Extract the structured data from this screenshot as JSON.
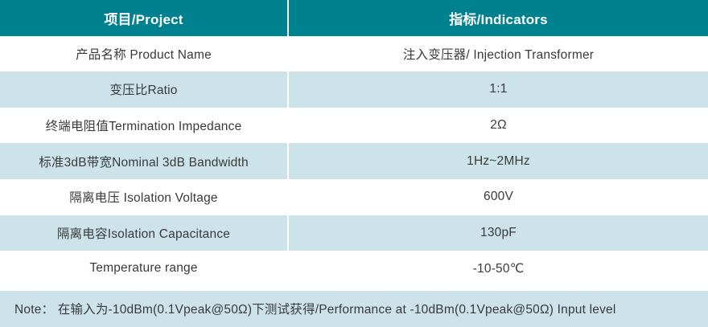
{
  "table": {
    "header": {
      "project": "项目/Project",
      "indicators": "指标/Indicators"
    },
    "rows": [
      {
        "project": "产品名称 Product Name",
        "indicator": "注入变压器/ Injection Transformer"
      },
      {
        "project": "变压比Ratio",
        "indicator": "1:1"
      },
      {
        "project": "终端电阻值Termination Impedance",
        "indicator": "2Ω"
      },
      {
        "project": "标准3dB带宽Nominal 3dB Bandwidth",
        "indicator": "1Hz~2MHz"
      },
      {
        "project": "隔离电压 Isolation Voltage",
        "indicator": "600V"
      },
      {
        "project": "隔离电容Isolation Capacitance",
        "indicator": "130pF"
      },
      {
        "project": "Temperature range",
        "indicator": "-10-50℃"
      }
    ],
    "note": "Note： 在输入为-10dBm(0.1Vpeak@50Ω)下测试获得/Performance at -10dBm(0.1Vpeak@50Ω) Input level"
  },
  "colors": {
    "header_bg": "#00818f",
    "header_text": "#ffffff",
    "row_alt_bg": "#cce4e9",
    "row_bg": "#ffffff",
    "body_text": "#3a3a3a"
  }
}
